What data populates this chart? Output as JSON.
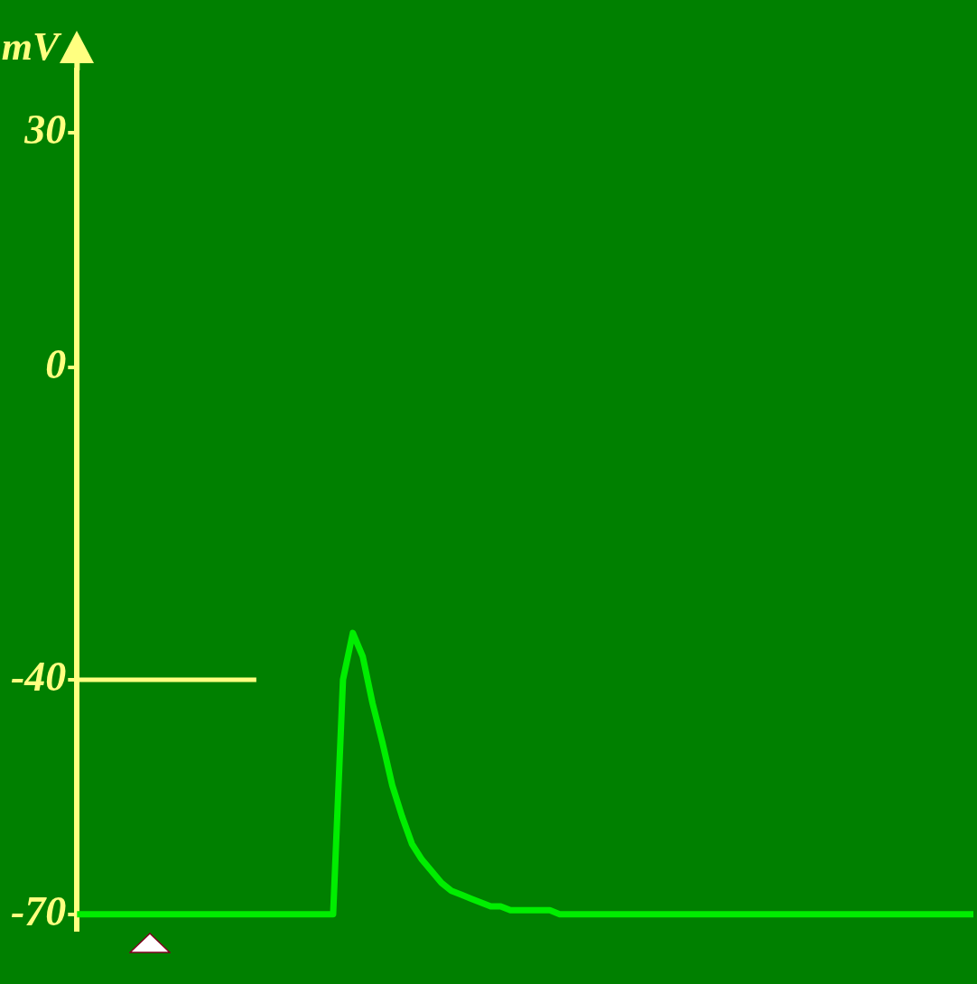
{
  "chart_data": {
    "type": "line",
    "ylabel": "mV",
    "categories": [
      null,
      null,
      null,
      null,
      null,
      null,
      null,
      null,
      null,
      null,
      null,
      null,
      null,
      null,
      null,
      null,
      null,
      null,
      null,
      null,
      null,
      null,
      null,
      null,
      null,
      null,
      null,
      null,
      null,
      null,
      null,
      null,
      null,
      null,
      null,
      null,
      null,
      null,
      null,
      null,
      null,
      null,
      null,
      null,
      null,
      null,
      null,
      null,
      null,
      null,
      null,
      null,
      null,
      null,
      null,
      null,
      null,
      null,
      null,
      null,
      null,
      null,
      null,
      null,
      null,
      null,
      null,
      null,
      null,
      null,
      null,
      null,
      null,
      null,
      null,
      null,
      null,
      null,
      null,
      null,
      null,
      null,
      null,
      null,
      null,
      null,
      null,
      null,
      null,
      null,
      null,
      null
    ],
    "series": [
      {
        "color": "#00ee00",
        "line_style": "solid",
        "values": [
          -70,
          -70,
          -70,
          -70,
          -70,
          -70,
          -70,
          -70,
          -70,
          -70,
          -70,
          -70,
          -70,
          -70,
          -70,
          -70,
          -70,
          -70,
          -70,
          -70,
          -70,
          -70,
          -70,
          -70,
          -70,
          -70,
          -70,
          -40,
          -34,
          -37,
          -43,
          -48,
          -53.5,
          -57.5,
          -61,
          -63,
          -64.5,
          -66,
          -67,
          -67.5,
          -68,
          -68.5,
          -69,
          -69,
          -69.5,
          -69.5,
          -69.5,
          -69.5,
          -69.5,
          -70,
          -70,
          -70,
          -70,
          -70,
          -70,
          -70,
          -70,
          -70,
          -70,
          -70,
          -70,
          -70,
          -70,
          -70,
          -70,
          -70,
          -70,
          -70,
          -70,
          -70,
          -70,
          -70,
          -70,
          -70,
          -70,
          -70,
          -70,
          -70,
          -70,
          -70,
          -70,
          -70,
          -70,
          -70,
          -70,
          -70,
          -70,
          -70,
          -70,
          -70,
          -70,
          -70
        ]
      }
    ],
    "ylim": [
      -72,
      38
    ],
    "yticks": [
      30,
      0,
      -40,
      -70
    ],
    "ref_lines": [
      {
        "axis": "y",
        "value": -40,
        "color": "#ffff80"
      }
    ],
    "grid": false,
    "legend": false,
    "marker": "none",
    "tick_labels": "y"
  }
}
